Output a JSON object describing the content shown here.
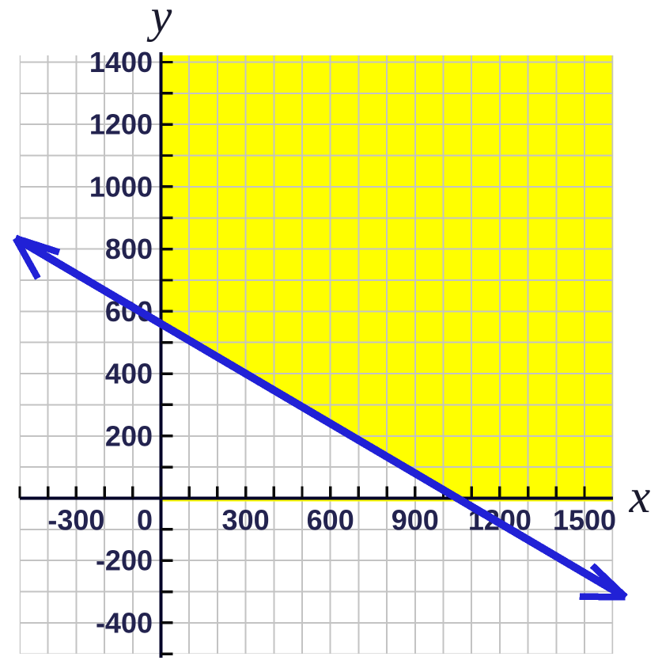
{
  "chart_data": {
    "type": "line",
    "title": "",
    "xlabel": "x",
    "ylabel": "y",
    "xlim": [
      -500,
      1610
    ],
    "ylim": [
      -500,
      1430
    ],
    "grid": {
      "on": true,
      "step": 100
    },
    "x_tick_labels": [
      -300,
      0,
      300,
      600,
      900,
      1200,
      1500
    ],
    "y_tick_labels": [
      1400,
      1200,
      1000,
      800,
      600,
      400,
      200,
      -200,
      -400
    ],
    "tick_step": 100,
    "series": [
      {
        "name": "boundary-line",
        "slope": -0.533333,
        "y_intercept": 560,
        "x_intercept": 1050,
        "points": [
          [
            0,
            560
          ],
          [
            1050,
            0
          ]
        ],
        "x_range": [
          -515,
          1645
        ],
        "arrows_both_ends": true
      }
    ],
    "region": {
      "name": "shaded-region",
      "description": "x >= 0, y >= 0, above boundary line",
      "vertices": [
        [
          0,
          1430
        ],
        [
          0,
          560
        ],
        [
          1050,
          0
        ],
        [
          1610,
          0
        ],
        [
          1610,
          1430
        ]
      ]
    },
    "legend": null,
    "colors": {
      "region_fill": "#ffff00",
      "line": "#2121d6",
      "grid": "#c3c3c3",
      "axis": "#000028",
      "tick": "#0a0a0a",
      "tick_label": "#23234f",
      "axis_title": "#1a1a2e",
      "background": "#ffffff"
    }
  }
}
